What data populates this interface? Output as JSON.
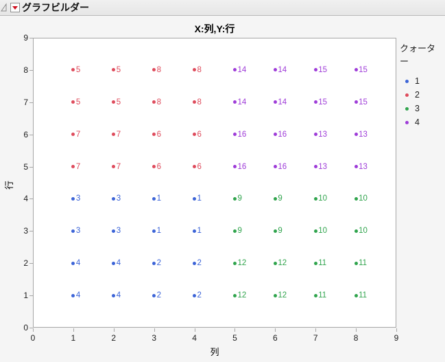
{
  "window": {
    "title": "グラフビルダー"
  },
  "chart_data": {
    "type": "scatter",
    "title": "X:列,Y:行",
    "xlabel": "列",
    "ylabel": "行",
    "xlim": [
      0,
      9
    ],
    "ylim": [
      0,
      9
    ],
    "xticks": [
      0,
      1,
      2,
      3,
      4,
      5,
      6,
      7,
      8,
      9
    ],
    "yticks": [
      0,
      1,
      2,
      3,
      4,
      5,
      6,
      7,
      8,
      9
    ],
    "grid": false,
    "point_labels_shown": true,
    "legend": {
      "title": "クォーター",
      "position": "right",
      "entries": [
        {
          "label": "1",
          "color": "#3C64D7"
        },
        {
          "label": "2",
          "color": "#DE4B5C"
        },
        {
          "label": "3",
          "color": "#30A44D"
        },
        {
          "label": "4",
          "color": "#9E3CD8"
        }
      ]
    },
    "series": [
      {
        "name": "1",
        "color": "#3C64D7",
        "points": [
          [
            1,
            4,
            "3"
          ],
          [
            2,
            4,
            "3"
          ],
          [
            3,
            4,
            "1"
          ],
          [
            4,
            4,
            "1"
          ],
          [
            1,
            3,
            "3"
          ],
          [
            2,
            3,
            "3"
          ],
          [
            3,
            3,
            "1"
          ],
          [
            4,
            3,
            "1"
          ],
          [
            1,
            2,
            "4"
          ],
          [
            2,
            2,
            "4"
          ],
          [
            3,
            2,
            "2"
          ],
          [
            4,
            2,
            "2"
          ],
          [
            1,
            1,
            "4"
          ],
          [
            2,
            1,
            "4"
          ],
          [
            3,
            1,
            "2"
          ],
          [
            4,
            1,
            "2"
          ]
        ]
      },
      {
        "name": "2",
        "color": "#DE4B5C",
        "points": [
          [
            1,
            8,
            "5"
          ],
          [
            2,
            8,
            "5"
          ],
          [
            3,
            8,
            "8"
          ],
          [
            4,
            8,
            "8"
          ],
          [
            1,
            7,
            "5"
          ],
          [
            2,
            7,
            "5"
          ],
          [
            3,
            7,
            "8"
          ],
          [
            4,
            7,
            "8"
          ],
          [
            1,
            6,
            "7"
          ],
          [
            2,
            6,
            "7"
          ],
          [
            3,
            6,
            "6"
          ],
          [
            4,
            6,
            "6"
          ],
          [
            1,
            5,
            "7"
          ],
          [
            2,
            5,
            "7"
          ],
          [
            3,
            5,
            "6"
          ],
          [
            4,
            5,
            "6"
          ]
        ]
      },
      {
        "name": "3",
        "color": "#30A44D",
        "points": [
          [
            5,
            4,
            "9"
          ],
          [
            6,
            4,
            "9"
          ],
          [
            7,
            4,
            "10"
          ],
          [
            8,
            4,
            "10"
          ],
          [
            5,
            3,
            "9"
          ],
          [
            6,
            3,
            "9"
          ],
          [
            7,
            3,
            "10"
          ],
          [
            8,
            3,
            "10"
          ],
          [
            5,
            2,
            "12"
          ],
          [
            6,
            2,
            "12"
          ],
          [
            7,
            2,
            "11"
          ],
          [
            8,
            2,
            "11"
          ],
          [
            5,
            1,
            "12"
          ],
          [
            6,
            1,
            "12"
          ],
          [
            7,
            1,
            "11"
          ],
          [
            8,
            1,
            "11"
          ]
        ]
      },
      {
        "name": "4",
        "color": "#9E3CD8",
        "points": [
          [
            5,
            8,
            "14"
          ],
          [
            6,
            8,
            "14"
          ],
          [
            7,
            8,
            "15"
          ],
          [
            8,
            8,
            "15"
          ],
          [
            5,
            7,
            "14"
          ],
          [
            6,
            7,
            "14"
          ],
          [
            7,
            7,
            "15"
          ],
          [
            8,
            7,
            "15"
          ],
          [
            5,
            6,
            "16"
          ],
          [
            6,
            6,
            "16"
          ],
          [
            7,
            6,
            "13"
          ],
          [
            8,
            6,
            "13"
          ],
          [
            5,
            5,
            "16"
          ],
          [
            6,
            5,
            "16"
          ],
          [
            7,
            5,
            "13"
          ],
          [
            8,
            5,
            "13"
          ]
        ]
      }
    ]
  }
}
